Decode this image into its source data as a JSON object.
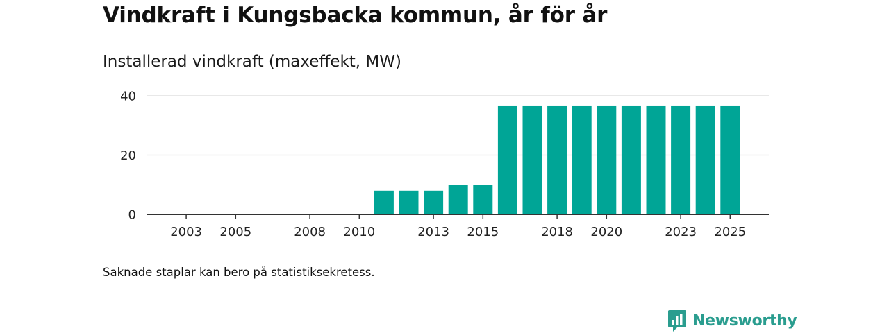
{
  "header": {
    "title": "Vindkraft i Kungsbacka kommun, år för år",
    "subtitle": "Installerad vindkraft (maxeffekt, MW)"
  },
  "footer": {
    "note": "Saknade staplar kan bero på statistiksekretess.",
    "brand": "Newsworthy",
    "brand_icon": "newsworthy-logo-icon"
  },
  "colors": {
    "bar": "#00a596",
    "grid": "#d9d9d9",
    "axis": "#333333",
    "brand": "#2a9d8f"
  },
  "chart_data": {
    "type": "bar",
    "title": "Vindkraft i Kungsbacka kommun, år för år",
    "ylabel": "Installerad vindkraft (maxeffekt, MW)",
    "xlabel": "",
    "categories": [
      2002,
      2003,
      2004,
      2005,
      2006,
      2007,
      2008,
      2009,
      2010,
      2011,
      2012,
      2013,
      2014,
      2015,
      2016,
      2017,
      2018,
      2019,
      2020,
      2021,
      2022,
      2023,
      2024,
      2025
    ],
    "values": [
      0,
      0,
      0,
      0,
      0,
      0,
      0,
      0,
      0,
      8,
      8,
      8,
      10,
      10,
      36.5,
      36.5,
      36.5,
      36.5,
      36.5,
      36.5,
      36.5,
      36.5,
      36.5,
      36.5
    ],
    "x_tick_labels": [
      "2003",
      "2005",
      "2008",
      "2010",
      "2013",
      "2015",
      "2018",
      "2020",
      "2023",
      "2025"
    ],
    "y_ticks": [
      0,
      20,
      40
    ],
    "y_tick_labels": [
      "0",
      "20",
      "40"
    ],
    "ylim": [
      0,
      40
    ],
    "grid": true,
    "legend": "none"
  }
}
